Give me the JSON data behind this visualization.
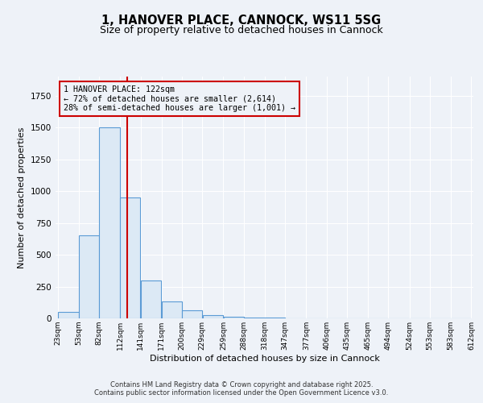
{
  "title": "1, HANOVER PLACE, CANNOCK, WS11 5SG",
  "subtitle": "Size of property relative to detached houses in Cannock",
  "xlabel": "Distribution of detached houses by size in Cannock",
  "ylabel": "Number of detached properties",
  "bar_edges": [
    23,
    53,
    82,
    112,
    141,
    171,
    200,
    229,
    259,
    288,
    318,
    347,
    377,
    406,
    435,
    465,
    494,
    524,
    553,
    583,
    612
  ],
  "bar_values": [
    50,
    650,
    1500,
    950,
    300,
    135,
    65,
    25,
    15,
    8,
    5,
    3,
    2,
    1,
    1,
    1,
    0,
    0,
    0,
    1
  ],
  "bar_color": "#dce9f5",
  "bar_edgecolor": "#5b9bd5",
  "vline_x": 122,
  "vline_color": "#cc0000",
  "annotation_line1": "1 HANOVER PLACE: 122sqm",
  "annotation_line2": "← 72% of detached houses are smaller (2,614)",
  "annotation_line3": "28% of semi-detached houses are larger (1,001) →",
  "ylim": [
    0,
    1900
  ],
  "background_color": "#eef2f8",
  "grid_color": "#ffffff",
  "title_fontsize": 10.5,
  "subtitle_fontsize": 9,
  "axis_fontsize": 8,
  "footer_text": "Contains HM Land Registry data © Crown copyright and database right 2025.\nContains public sector information licensed under the Open Government Licence v3.0.",
  "tick_labels": [
    "23sqm",
    "53sqm",
    "82sqm",
    "112sqm",
    "141sqm",
    "171sqm",
    "200sqm",
    "229sqm",
    "259sqm",
    "288sqm",
    "318sqm",
    "347sqm",
    "377sqm",
    "406sqm",
    "435sqm",
    "465sqm",
    "494sqm",
    "524sqm",
    "553sqm",
    "583sqm",
    "612sqm"
  ]
}
